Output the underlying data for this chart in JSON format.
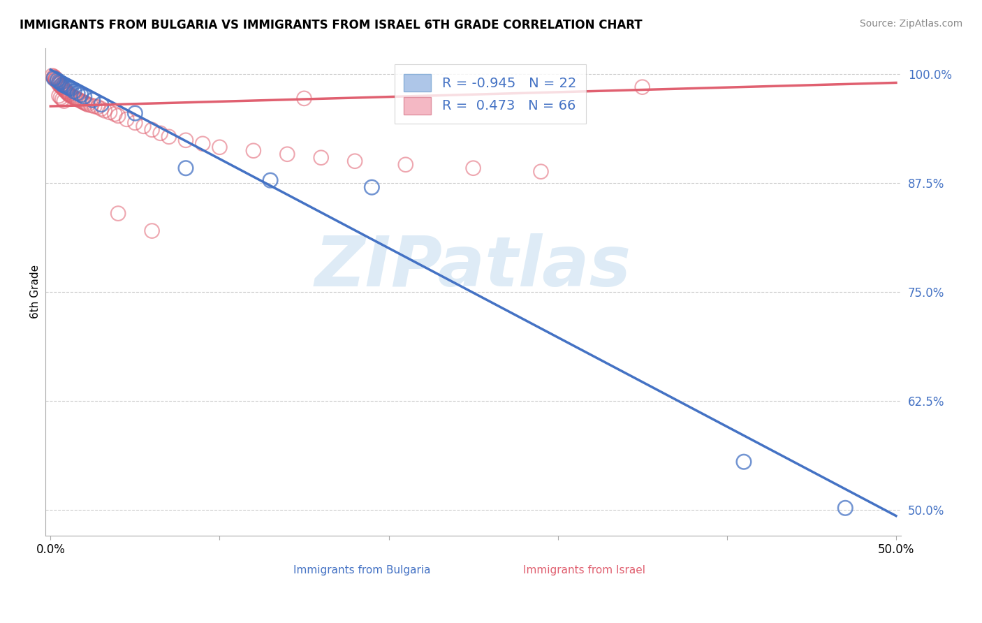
{
  "title": "IMMIGRANTS FROM BULGARIA VS IMMIGRANTS FROM ISRAEL 6TH GRADE CORRELATION CHART",
  "source": "Source: ZipAtlas.com",
  "ylabel": "6th Grade",
  "ytick_labels": [
    "100.0%",
    "87.5%",
    "75.0%",
    "62.5%",
    "50.0%"
  ],
  "ytick_values": [
    1.0,
    0.875,
    0.75,
    0.625,
    0.5
  ],
  "xlim": [
    0.0,
    0.5
  ],
  "ylim": [
    0.47,
    1.03
  ],
  "legend_label1": "R = -0.945   N = 22",
  "legend_label2": "R =  0.473   N = 66",
  "legend_x_label": "Immigrants from Bulgaria",
  "legend_x_label2": "Immigrants from Israel",
  "blue_color": "#4472c4",
  "pink_color": "#e06070",
  "blue_patch_color": "#aec6e8",
  "pink_patch_color": "#f4b8c4",
  "watermark": "ZIPatlas",
  "watermark_color": "#c8dff0",
  "blue_line_x": [
    0.0,
    0.5
  ],
  "blue_line_y": [
    1.005,
    0.493
  ],
  "pink_line_x": [
    0.0,
    0.5
  ],
  "pink_line_y": [
    0.963,
    0.99
  ],
  "blue_x": [
    0.002,
    0.004,
    0.005,
    0.006,
    0.007,
    0.008,
    0.009,
    0.01,
    0.011,
    0.012,
    0.014,
    0.016,
    0.018,
    0.02,
    0.025,
    0.03,
    0.05,
    0.08,
    0.13,
    0.19,
    0.41,
    0.47
  ],
  "blue_y": [
    0.995,
    0.993,
    0.991,
    0.99,
    0.988,
    0.987,
    0.986,
    0.985,
    0.984,
    0.983,
    0.98,
    0.978,
    0.976,
    0.974,
    0.97,
    0.965,
    0.955,
    0.892,
    0.878,
    0.87,
    0.555,
    0.502
  ],
  "pink_x": [
    0.001,
    0.002,
    0.002,
    0.003,
    0.003,
    0.003,
    0.004,
    0.004,
    0.005,
    0.005,
    0.005,
    0.006,
    0.006,
    0.007,
    0.007,
    0.008,
    0.008,
    0.009,
    0.009,
    0.01,
    0.01,
    0.011,
    0.011,
    0.012,
    0.013,
    0.014,
    0.015,
    0.016,
    0.017,
    0.018,
    0.019,
    0.02,
    0.021,
    0.022,
    0.024,
    0.026,
    0.028,
    0.03,
    0.032,
    0.035,
    0.038,
    0.04,
    0.045,
    0.05,
    0.055,
    0.06,
    0.065,
    0.07,
    0.08,
    0.09,
    0.1,
    0.12,
    0.14,
    0.16,
    0.18,
    0.21,
    0.25,
    0.29,
    0.005,
    0.006,
    0.007,
    0.008,
    0.04,
    0.06,
    0.15,
    0.35
  ],
  "pink_y": [
    0.998,
    0.997,
    0.996,
    0.995,
    0.994,
    0.993,
    0.992,
    0.991,
    0.99,
    0.989,
    0.988,
    0.987,
    0.986,
    0.985,
    0.984,
    0.983,
    0.982,
    0.981,
    0.98,
    0.979,
    0.978,
    0.977,
    0.976,
    0.975,
    0.974,
    0.973,
    0.972,
    0.971,
    0.97,
    0.969,
    0.968,
    0.967,
    0.966,
    0.965,
    0.964,
    0.963,
    0.962,
    0.96,
    0.958,
    0.956,
    0.954,
    0.952,
    0.948,
    0.944,
    0.94,
    0.936,
    0.932,
    0.928,
    0.924,
    0.92,
    0.916,
    0.912,
    0.908,
    0.904,
    0.9,
    0.896,
    0.892,
    0.888,
    0.975,
    0.973,
    0.971,
    0.969,
    0.84,
    0.82,
    0.972,
    0.985
  ]
}
